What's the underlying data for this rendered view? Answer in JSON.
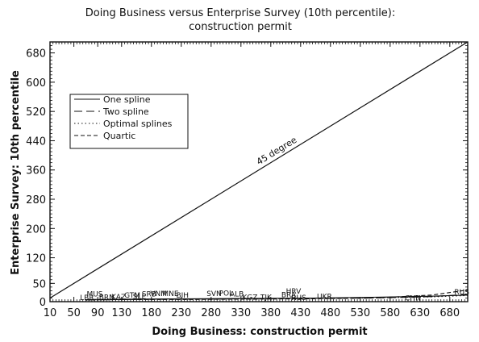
{
  "chart_data": {
    "type": "scatter",
    "title": "Doing Business versus Enterprise Survey (10th percentile):",
    "subtitle": "construction permit",
    "xlabel": "Doing Business: construction permit",
    "ylabel": "Enterprise Survey: 10th percentile",
    "xlim": [
      10,
      710
    ],
    "ylim": [
      0,
      710
    ],
    "x_ticks": [
      10,
      50,
      90,
      130,
      180,
      230,
      280,
      330,
      380,
      430,
      480,
      530,
      580,
      630,
      680
    ],
    "y_ticks": [
      0,
      50,
      120,
      200,
      280,
      360,
      440,
      520,
      600,
      680
    ],
    "legend_position": "upper-left",
    "legend": [
      {
        "name": "One spline",
        "style": "solid"
      },
      {
        "name": "Two spline",
        "style": "longdash"
      },
      {
        "name": "Optimal splines",
        "style": "dotted"
      },
      {
        "name": "Quartic",
        "style": "dashed"
      }
    ],
    "reference_line": {
      "label": "45 degree",
      "x": [
        10,
        710
      ],
      "y": [
        10,
        710
      ]
    },
    "fit_lines": [
      {
        "name": "One spline",
        "style": "solid",
        "x": [
          70,
          150,
          250,
          350,
          450,
          550,
          650,
          710
        ],
        "y": [
          6,
          7,
          8,
          9,
          10,
          12,
          15,
          18
        ]
      },
      {
        "name": "Two spline",
        "style": "longdash",
        "x": [
          70,
          150,
          250,
          350,
          450,
          550,
          650,
          710
        ],
        "y": [
          5,
          6,
          7,
          8,
          9,
          10,
          14,
          20
        ]
      },
      {
        "name": "Optimal splines",
        "style": "dotted",
        "x": [
          70,
          150,
          250,
          350,
          450,
          550,
          650,
          710
        ],
        "y": [
          4,
          6,
          7,
          8,
          9,
          10,
          13,
          17
        ]
      },
      {
        "name": "Quartic",
        "style": "dashed",
        "x": [
          70,
          150,
          250,
          350,
          450,
          550,
          650,
          710
        ],
        "y": [
          5,
          6,
          6,
          7,
          8,
          10,
          18,
          32
        ]
      }
    ],
    "points": [
      {
        "label": "MUS",
        "x": 85,
        "y": 14
      },
      {
        "label": "LBR",
        "x": 72,
        "y": 4
      },
      {
        "label": "BRN",
        "x": 105,
        "y": 5
      },
      {
        "label": "KAZ",
        "x": 125,
        "y": 7
      },
      {
        "label": "GTM",
        "x": 148,
        "y": 11
      },
      {
        "label": "SLE",
        "x": 160,
        "y": 8
      },
      {
        "label": "SRB",
        "x": 176,
        "y": 14
      },
      {
        "label": "VNM",
        "x": 192,
        "y": 15
      },
      {
        "label": "MNE",
        "x": 212,
        "y": 15
      },
      {
        "label": "BIH",
        "x": 232,
        "y": 11
      },
      {
        "label": "SVN",
        "x": 285,
        "y": 15
      },
      {
        "label": "POL",
        "x": 305,
        "y": 16
      },
      {
        "label": "ALB",
        "x": 323,
        "y": 14
      },
      {
        "label": "KGZ",
        "x": 345,
        "y": 6
      },
      {
        "label": "TJK",
        "x": 372,
        "y": 5
      },
      {
        "label": "HRV",
        "x": 418,
        "y": 22
      },
      {
        "label": "BRA",
        "x": 410,
        "y": 12
      },
      {
        "label": "RUS",
        "x": 427,
        "y": 4
      },
      {
        "label": "UKR",
        "x": 470,
        "y": 8
      },
      {
        "label": "CHN",
        "x": 618,
        "y": 3
      },
      {
        "label": "RUS",
        "x": 700,
        "y": 20
      }
    ]
  }
}
